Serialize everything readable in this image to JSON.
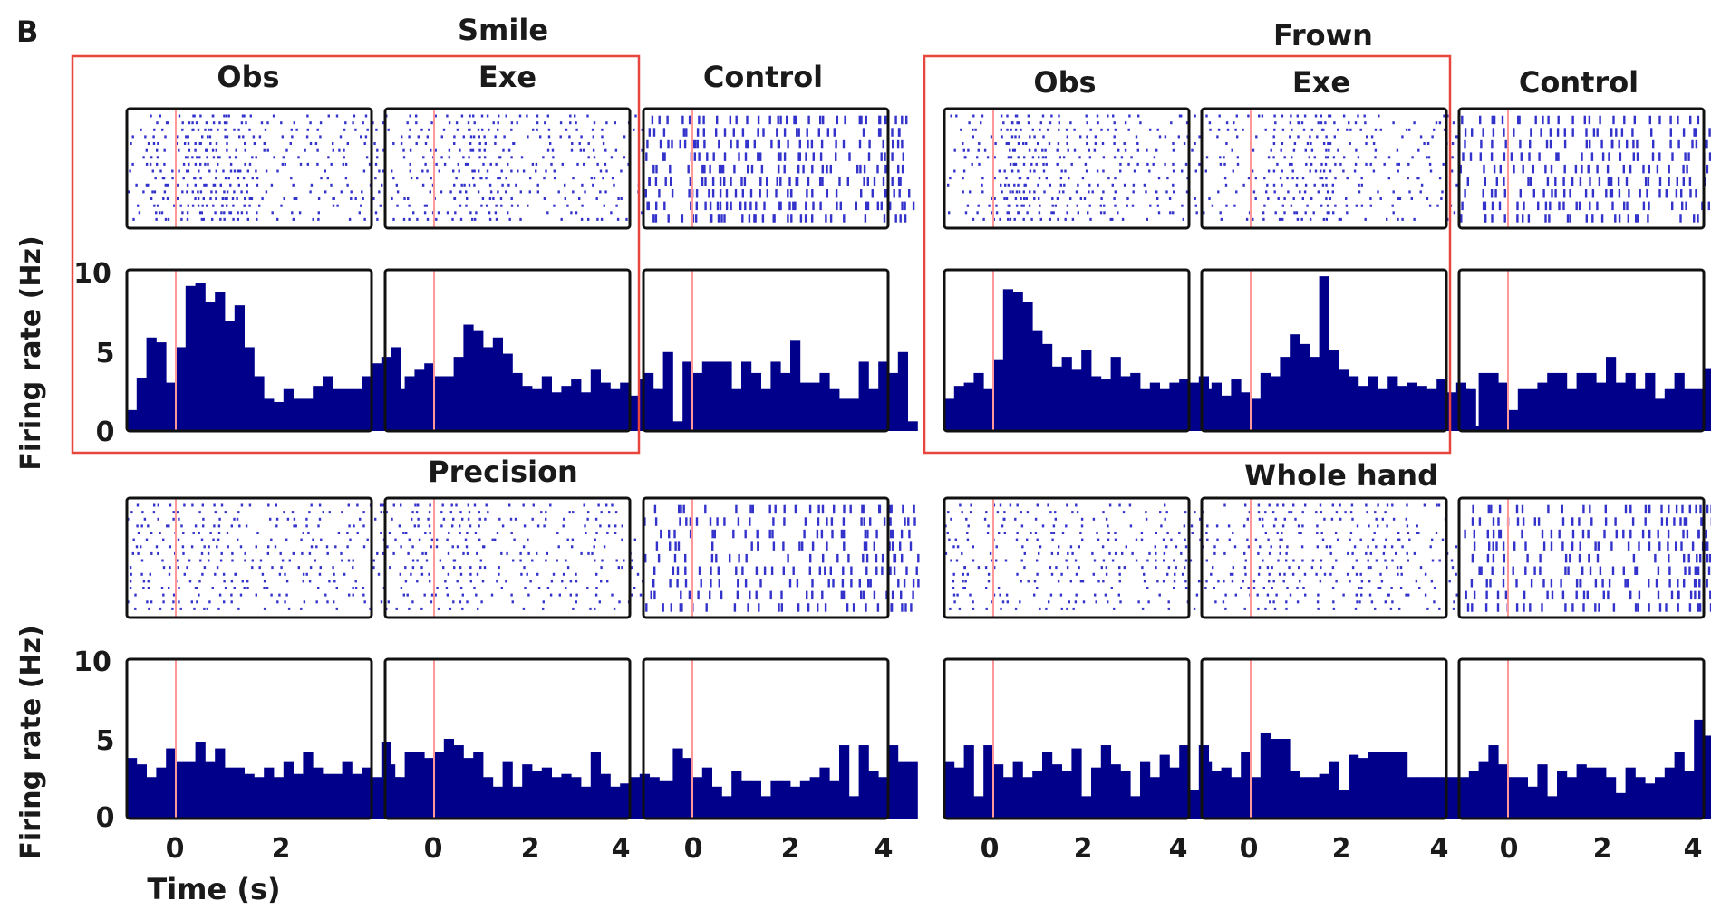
{
  "panel_label": "B",
  "axis_labels": {
    "ylabel": "Firing rate (Hz)",
    "xlabel": "Time (s)"
  },
  "condition_labels": {
    "obs": "Obs",
    "exe": "Exe",
    "control": "Control"
  },
  "group_titles": {
    "smile": "Smile",
    "frown": "Frown",
    "precision": "Precision",
    "whole_hand": "Whole hand"
  },
  "colors": {
    "bars": "#00008b",
    "spikes": "#3333cc",
    "onset_line": "#ff9999",
    "highlight_box": "#e8453c",
    "frame": "#111111"
  },
  "chart_data": [
    {
      "type": "bar",
      "group": "Smile",
      "condition": "Obs",
      "xlim": [
        -1,
        4
      ],
      "ylim": [
        0,
        10
      ],
      "xticks": [
        "0",
        "2",
        "4"
      ],
      "yticks": [
        "0",
        "5",
        "10"
      ],
      "bin_width": 0.2,
      "values": [
        1.3,
        3.3,
        5.8,
        5.5,
        3.0,
        5.2,
        9.0,
        9.2,
        8.0,
        8.6,
        6.8,
        7.8,
        5.2,
        3.4,
        2.0,
        1.8,
        2.6,
        2.0,
        2.0,
        2.8,
        3.4,
        2.6,
        2.6,
        2.6,
        3.4,
        4.2,
        4.6,
        5.2
      ]
    },
    {
      "type": "bar",
      "group": "Smile",
      "condition": "Exe",
      "xlim": [
        -1,
        4
      ],
      "ylim": [
        0,
        10
      ],
      "xticks": [
        "0",
        "2",
        "4"
      ],
      "yticks": [
        "0",
        "5",
        "10"
      ],
      "bin_width": 0.2,
      "values": [
        1.8,
        2.6,
        3.4,
        3.8,
        4.2,
        3.4,
        3.4,
        4.6,
        6.6,
        6.2,
        5.2,
        5.8,
        4.8,
        3.6,
        2.8,
        2.6,
        3.4,
        2.4,
        2.8,
        3.2,
        2.4,
        3.8,
        3.0,
        2.6,
        3.0,
        2.2,
        3.2,
        2.6
      ]
    },
    {
      "type": "bar",
      "group": "Smile",
      "condition": "Control",
      "xlim": [
        -1,
        4
      ],
      "ylim": [
        0,
        10
      ],
      "xticks": [
        "0",
        "2",
        "4"
      ],
      "yticks": [
        "0",
        "5",
        "10"
      ],
      "bin_width": 0.2,
      "values": [
        3.6,
        2.6,
        4.9,
        0.6,
        4.3,
        3.6,
        4.3,
        4.3,
        4.3,
        2.6,
        4.3,
        3.6,
        2.6,
        4.3,
        3.6,
        5.6,
        3.0,
        3.0,
        3.6,
        2.6,
        2.0,
        2.0,
        4.3,
        2.6,
        4.3,
        3.6,
        4.9,
        0.6
      ]
    },
    {
      "type": "bar",
      "group": "Frown",
      "condition": "Obs",
      "xlim": [
        -1,
        4
      ],
      "ylim": [
        0,
        10
      ],
      "xticks": [
        "0",
        "2",
        "4"
      ],
      "yticks": [
        "0",
        "5",
        "10"
      ],
      "bin_width": 0.2,
      "values": [
        2.0,
        2.8,
        3.0,
        3.6,
        2.6,
        4.4,
        8.8,
        8.6,
        8.0,
        6.2,
        5.4,
        4.0,
        4.6,
        3.8,
        5.0,
        3.4,
        3.2,
        4.6,
        3.4,
        3.6,
        2.6,
        3.0,
        2.6,
        3.0,
        3.2,
        3.0,
        3.4,
        2.4
      ]
    },
    {
      "type": "bar",
      "group": "Frown",
      "condition": "Exe",
      "xlim": [
        -1,
        4
      ],
      "ylim": [
        0,
        10
      ],
      "xticks": [
        "0",
        "2",
        "4"
      ],
      "yticks": [
        "0",
        "5",
        "10"
      ],
      "bin_width": 0.2,
      "values": [
        2.6,
        3.0,
        2.2,
        3.2,
        2.4,
        2.0,
        3.6,
        3.4,
        4.6,
        6.0,
        5.4,
        4.6,
        9.6,
        5.0,
        3.8,
        3.4,
        2.8,
        3.4,
        2.6,
        3.4,
        2.8,
        3.0,
        2.8,
        2.6,
        3.2,
        2.4,
        3.0,
        2.6
      ]
    },
    {
      "type": "bar",
      "group": "Frown",
      "condition": "Control",
      "xlim": [
        -1,
        4
      ],
      "ylim": [
        0,
        10
      ],
      "xticks": [
        "0",
        "2",
        "4"
      ],
      "yticks": [
        "0",
        "5",
        "10"
      ],
      "bin_width": 0.2,
      "values": [
        2.6,
        0.3,
        3.6,
        3.6,
        3.0,
        1.3,
        2.6,
        2.6,
        3.0,
        3.6,
        3.6,
        2.6,
        3.6,
        3.6,
        3.0,
        4.6,
        3.0,
        3.6,
        2.6,
        3.6,
        2.0,
        2.6,
        3.6,
        2.6,
        2.6,
        3.9,
        3.0,
        3.0
      ]
    },
    {
      "type": "bar",
      "group": "Precision",
      "condition": "Obs",
      "xlim": [
        -1,
        4
      ],
      "ylim": [
        0,
        10
      ],
      "xticks": [
        "0",
        "2",
        "4"
      ],
      "yticks": [
        "0",
        "5",
        "10"
      ],
      "bin_width": 0.2,
      "values": [
        3.8,
        3.4,
        2.6,
        3.2,
        4.4,
        3.6,
        3.6,
        4.8,
        3.6,
        4.4,
        3.2,
        3.2,
        2.8,
        2.6,
        3.2,
        2.6,
        3.6,
        2.8,
        4.2,
        3.2,
        2.8,
        2.8,
        3.6,
        2.8,
        3.2,
        2.6,
        4.8,
        2.6
      ]
    },
    {
      "type": "bar",
      "group": "Precision",
      "condition": "Exe",
      "xlim": [
        -1,
        4
      ],
      "ylim": [
        0,
        10
      ],
      "xticks": [
        "0",
        "2",
        "4"
      ],
      "yticks": [
        "0",
        "5",
        "10"
      ],
      "bin_width": 0.2,
      "values": [
        3.4,
        2.6,
        4.2,
        4.2,
        3.8,
        4.2,
        5.0,
        4.6,
        3.8,
        4.2,
        2.6,
        2.0,
        3.6,
        2.0,
        3.4,
        3.0,
        3.2,
        2.6,
        2.8,
        2.6,
        2.0,
        4.2,
        2.8,
        2.0,
        2.2,
        2.6,
        2.8,
        2.6
      ]
    },
    {
      "type": "bar",
      "group": "Precision",
      "condition": "Control",
      "xlim": [
        -1,
        4
      ],
      "ylim": [
        0,
        10
      ],
      "xticks": [
        "0",
        "2",
        "4"
      ],
      "yticks": [
        "0",
        "5",
        "10"
      ],
      "bin_width": 0.2,
      "values": [
        2.4,
        2.4,
        2.4,
        4.4,
        3.8,
        2.6,
        3.2,
        2.0,
        1.4,
        3.0,
        2.4,
        2.4,
        1.4,
        2.4,
        2.4,
        2.0,
        2.4,
        2.6,
        3.2,
        2.4,
        4.6,
        1.4,
        4.6,
        3.0,
        2.6,
        4.6,
        3.6,
        3.6
      ]
    },
    {
      "type": "bar",
      "group": "Whole hand",
      "condition": "Obs",
      "xlim": [
        -1,
        4
      ],
      "ylim": [
        0,
        10
      ],
      "xticks": [
        "0",
        "2",
        "4"
      ],
      "yticks": [
        "0",
        "5",
        "10"
      ],
      "bin_width": 0.2,
      "values": [
        3.6,
        3.2,
        4.6,
        1.4,
        4.6,
        3.4,
        2.6,
        3.6,
        2.6,
        3.0,
        4.2,
        3.4,
        3.0,
        4.4,
        1.4,
        3.2,
        4.6,
        3.4,
        3.0,
        1.4,
        3.6,
        2.6,
        4.0,
        3.2,
        4.6,
        1.8,
        4.6,
        3.0
      ]
    },
    {
      "type": "bar",
      "group": "Whole hand",
      "condition": "Exe",
      "xlim": [
        -1,
        4
      ],
      "ylim": [
        0,
        10
      ],
      "xticks": [
        "0",
        "2",
        "4"
      ],
      "yticks": [
        "0",
        "5",
        "10"
      ],
      "bin_width": 0.2,
      "values": [
        3.6,
        3.0,
        3.2,
        2.6,
        4.2,
        2.6,
        5.4,
        5.0,
        5.0,
        3.0,
        2.6,
        2.6,
        2.8,
        3.6,
        1.8,
        4.0,
        3.8,
        4.2,
        4.2,
        4.2,
        4.2,
        2.6,
        2.6,
        2.6,
        2.6,
        2.6,
        2.6,
        2.6
      ]
    },
    {
      "type": "bar",
      "group": "Whole hand",
      "condition": "Control",
      "xlim": [
        -1,
        4
      ],
      "ylim": [
        0,
        10
      ],
      "xticks": [
        "0",
        "2",
        "4"
      ],
      "yticks": [
        "0",
        "5",
        "10"
      ],
      "bin_width": 0.2,
      "values": [
        1.4,
        3.0,
        3.6,
        4.6,
        3.4,
        2.6,
        2.6,
        2.0,
        3.4,
        1.4,
        3.0,
        2.6,
        3.4,
        3.2,
        3.2,
        2.6,
        1.6,
        3.2,
        2.6,
        2.2,
        2.6,
        3.2,
        4.2,
        3.0,
        6.2,
        5.2,
        2.6,
        3.2
      ]
    }
  ]
}
